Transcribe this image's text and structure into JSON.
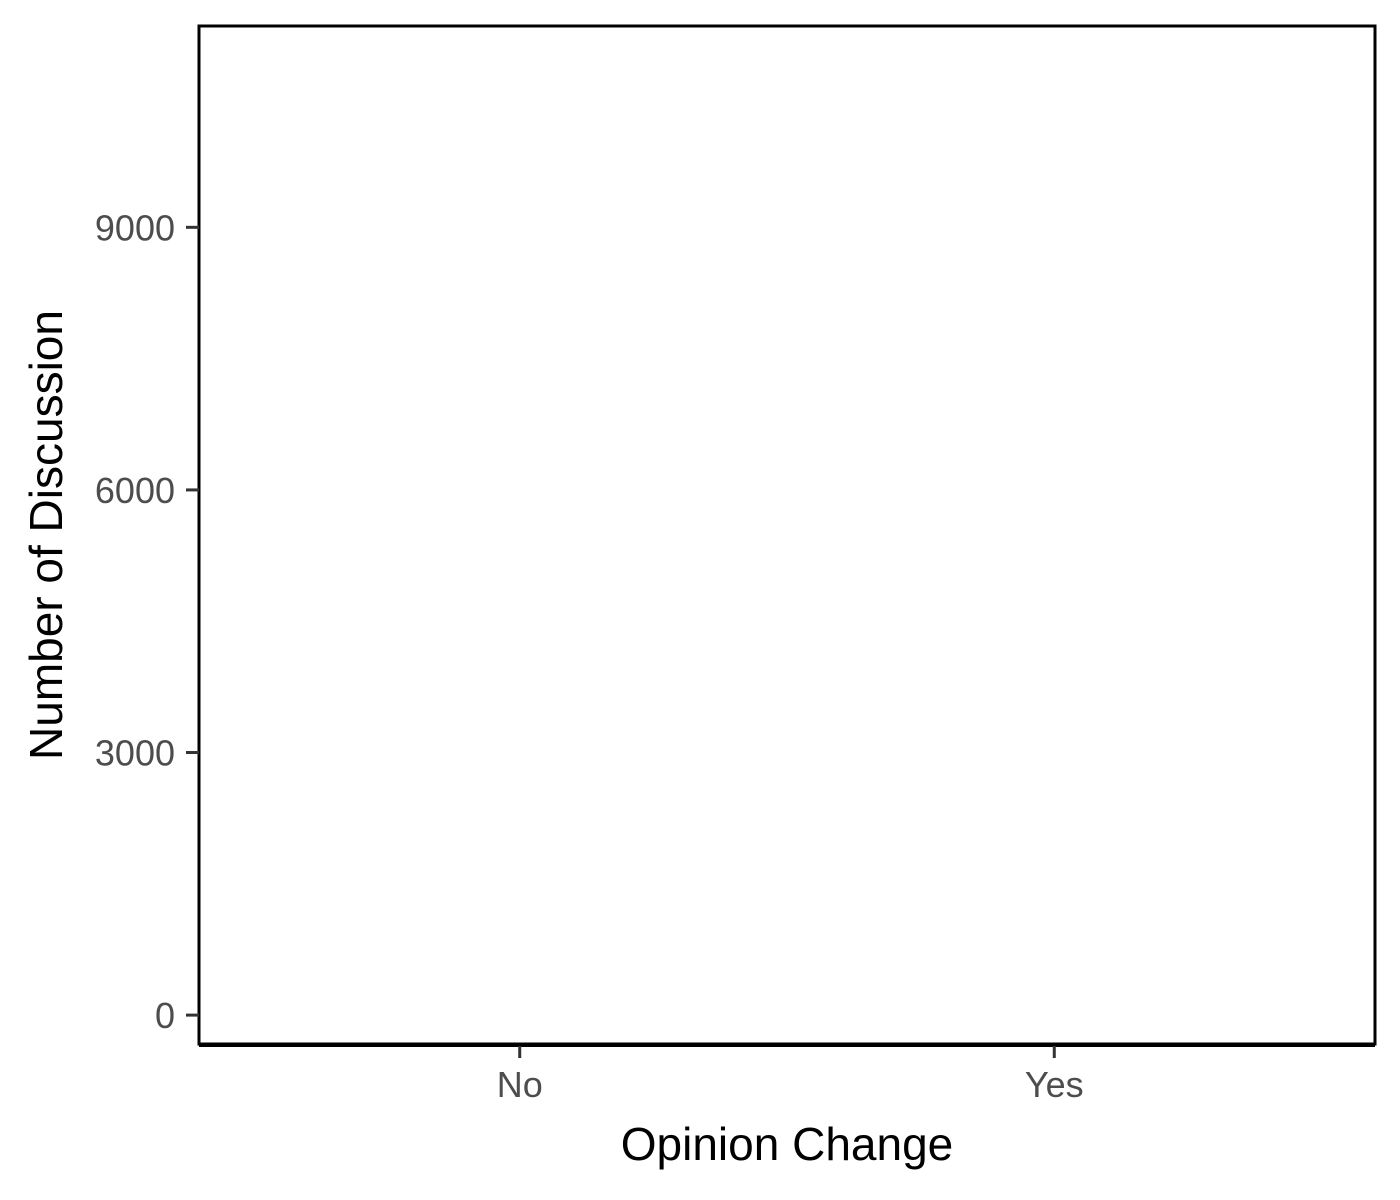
{
  "chart_data": {
    "type": "bar",
    "title": "",
    "xlabel": "Opinion Change",
    "ylabel": "Number of Discussion",
    "categories": [
      "No",
      "Yes"
    ],
    "values": [
      null,
      null
    ],
    "ylim": [
      -330,
      11300
    ],
    "yticks": [
      0,
      3000,
      6000,
      9000
    ],
    "ytick_labels": [
      "0",
      "3000",
      "6000",
      "9000"
    ],
    "grid": false,
    "legend": "none",
    "colors": {
      "frame": "#000000",
      "tick_text": "#4d4d4d",
      "axis_title": "#000000",
      "background": "#ffffff"
    }
  }
}
